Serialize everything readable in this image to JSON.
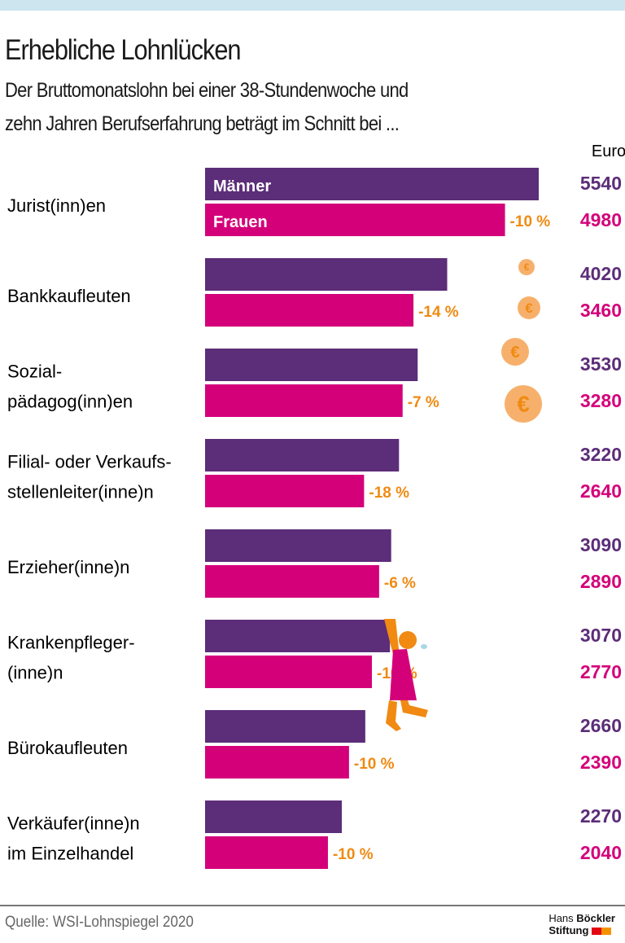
{
  "title": "Erhebliche Lohnlücken",
  "subtitle_lines": [
    "Der Bruttomonatslohn bei einer 38-Stundenwoche und",
    "zehn Jahren Berufserfahrung beträgt im Schnitt bei ..."
  ],
  "source": "Quelle: WSI-Lohnspiegel 2020",
  "logo": {
    "line1_light": "Hans",
    "line1_bold": "Böckler",
    "line2": "Stiftung",
    "colors": [
      "#e30613",
      "#f39200"
    ]
  },
  "colors": {
    "men": "#5c2d78",
    "women": "#d4007a",
    "gap": "#f08a12",
    "coin": "#f7b06b",
    "figure": "#f08a12"
  },
  "chart_data": {
    "type": "bar",
    "orientation": "horizontal",
    "unit_label": "Euro",
    "categories": [
      [
        "Jurist(inn)en"
      ],
      [
        "Bankkaufleuten"
      ],
      [
        "Sozial-",
        "pädagog(inn)en"
      ],
      [
        "Filial- oder Verkaufs-",
        "stellenleiter(inne)n"
      ],
      [
        "Erzieher(inne)n"
      ],
      [
        "Krankenpfleger-",
        "(inne)n"
      ],
      [
        "Bürokaufleuten"
      ],
      [
        "Verkäufer(inne)n",
        "im Einzelhandel"
      ]
    ],
    "series": [
      {
        "name": "Männer",
        "values": [
          5540,
          4020,
          3530,
          3220,
          3090,
          3070,
          2660,
          2270
        ]
      },
      {
        "name": "Frauen",
        "values": [
          4980,
          3460,
          3280,
          2640,
          2890,
          2770,
          2390,
          2040
        ]
      }
    ],
    "gap_labels": [
      "-10 %",
      "-14 %",
      "-7 %",
      "-18 %",
      "-6 %",
      "-10 %",
      "-10 %",
      "-10 %"
    ],
    "value_labels": {
      "men": [
        "5540",
        "4020",
        "3530",
        "3220",
        "3090",
        "3070",
        "2660",
        "2270"
      ],
      "women": [
        "4980",
        "3460",
        "3280",
        "2640",
        "2890",
        "2770",
        "2390",
        "2040"
      ]
    },
    "decorations": {
      "coin_symbol": "€",
      "coins": 4,
      "figure": "woman-hanging-from-bar"
    }
  }
}
